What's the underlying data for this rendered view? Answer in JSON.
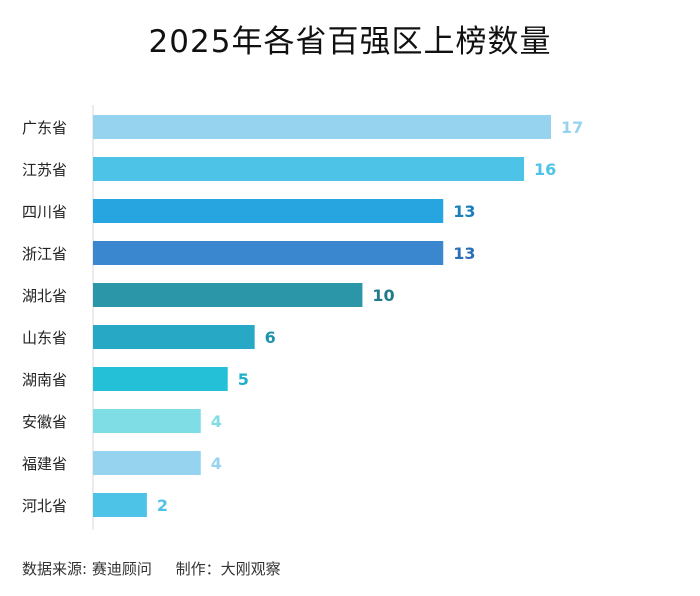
{
  "chart_data": {
    "type": "bar",
    "orientation": "horizontal",
    "title": "2025年各省百强区上榜数量",
    "categories": [
      "广东省",
      "江苏省",
      "四川省",
      "浙江省",
      "湖北省",
      "山东省",
      "湖南省",
      "安徽省",
      "福建省",
      "河北省"
    ],
    "values": [
      17,
      16,
      13,
      13,
      10,
      6,
      5,
      4,
      4,
      2
    ],
    "bar_colors": [
      "#96d3ef",
      "#4ec3e8",
      "#27a5e0",
      "#3a86cf",
      "#2a96a8",
      "#27a8c4",
      "#24c0d8",
      "#7fdde6",
      "#96d3ef",
      "#4ec3e8"
    ],
    "label_colors": [
      "#96d3ef",
      "#4ec3e8",
      "#1a7fb8",
      "#2a6fb6",
      "#1f7b8c",
      "#1f93ad",
      "#1fb0c8",
      "#7fdde6",
      "#96d3ef",
      "#4ec3e8"
    ],
    "xlim": [
      0,
      17
    ],
    "grid": false,
    "legend": "none",
    "data_labels": true
  },
  "footer": {
    "source": "数据来源: 赛迪顾问",
    "author": "制作：大刚观察"
  }
}
